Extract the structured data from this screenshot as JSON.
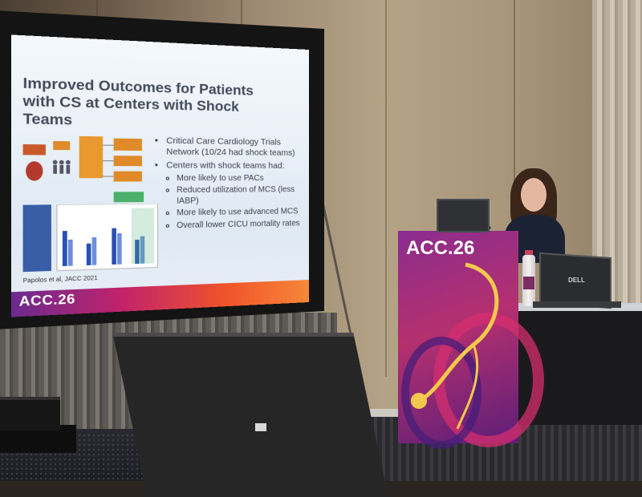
{
  "slide": {
    "title": "Improved Outcomes for Patients with CS at Centers with Shock Teams",
    "bullets": [
      "Critical Care Cardiology Trials Network (10/24 had shock teams)",
      "Centers with shock teams had:"
    ],
    "sub_bullets": [
      "More likely to use PACs",
      "Reduced utilization of MCS (less IABP)",
      "More likely to use advanced MCS",
      "Overall lower CICU mortality rates"
    ],
    "citation": "Papolos et al, JACC 2021",
    "footer_logo": "ACC.26"
  },
  "podium": {
    "logo": "ACC.26"
  },
  "laptop_brand": "DELL",
  "colors": {
    "slide_title": "#434b5a",
    "footer_gradient_start": "#6b2a8e",
    "footer_gradient_end": "#f7873a",
    "podium": "#8a2c8e",
    "logo_accent": "#f2c94c"
  }
}
